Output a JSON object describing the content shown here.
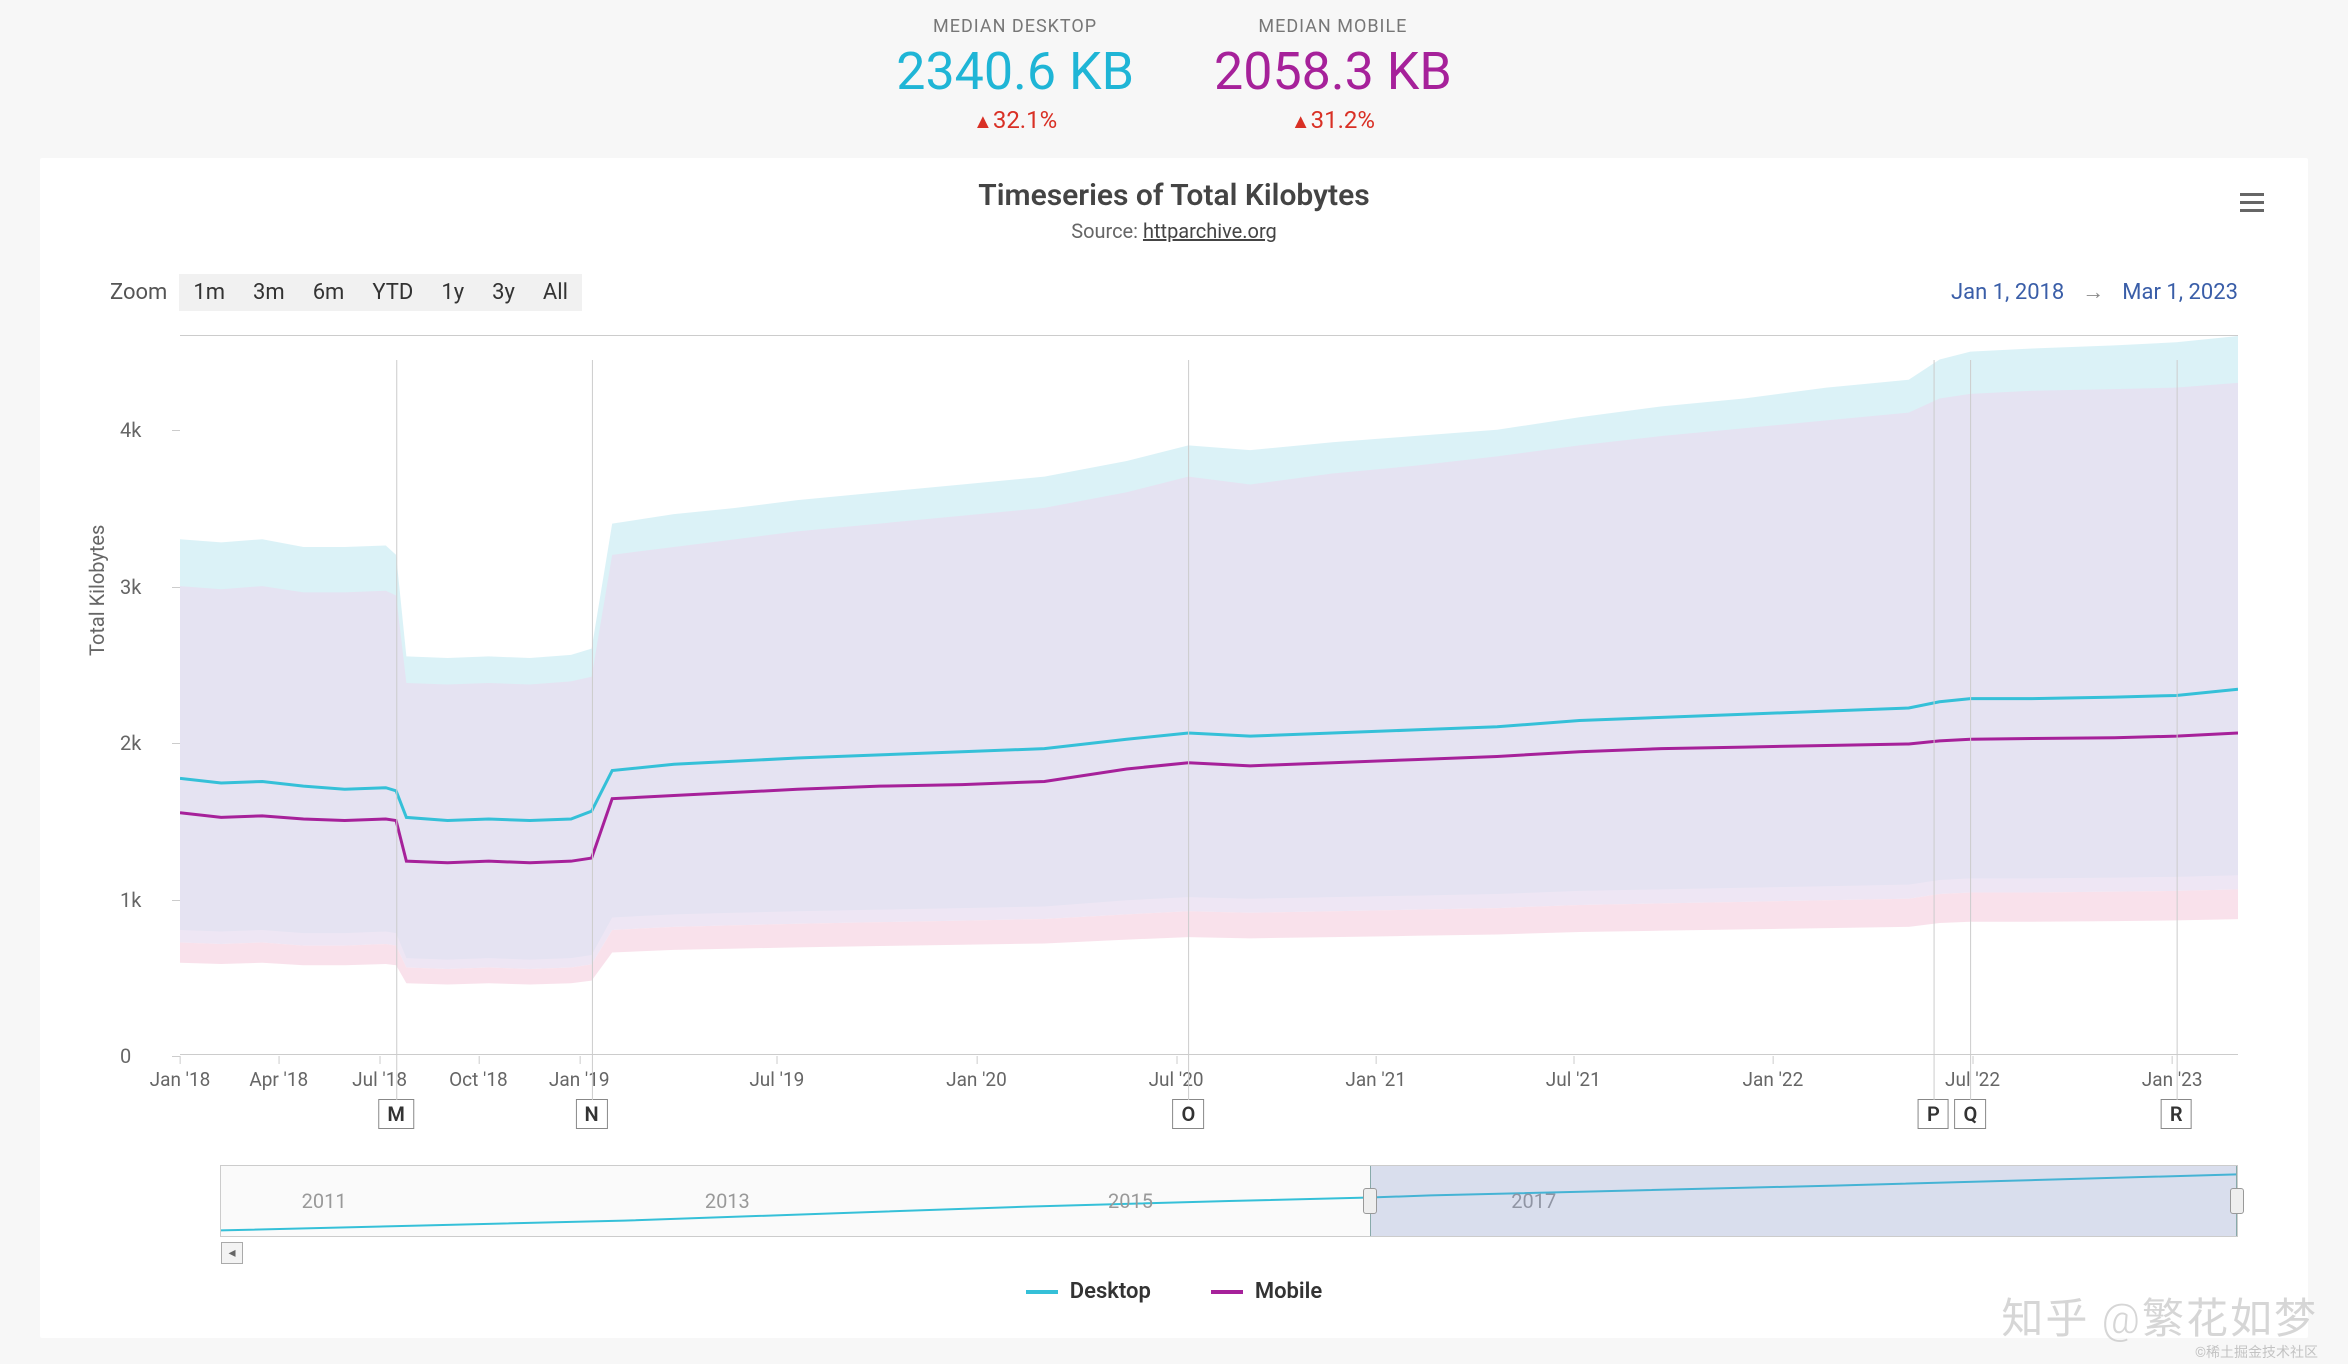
{
  "header": {
    "desktop": {
      "label": "MEDIAN DESKTOP",
      "value": "2340.6 KB",
      "delta": "32.1%",
      "delta_up": true,
      "value_color": "#1fb5d6",
      "delta_color": "#d93025"
    },
    "mobile": {
      "label": "MEDIAN MOBILE",
      "value": "2058.3 KB",
      "delta": "31.2%",
      "delta_up": true,
      "value_color": "#a6219a",
      "delta_color": "#d93025"
    }
  },
  "chart": {
    "title": "Timeseries of Total Kilobytes",
    "subtitle_prefix": "Source: ",
    "subtitle_link": "httparchive.org",
    "y_axis_title": "Total Kilobytes",
    "zoom_label": "Zoom",
    "zoom_buttons": [
      "1m",
      "3m",
      "6m",
      "YTD",
      "1y",
      "3y",
      "All"
    ],
    "date_from": "Jan 1, 2018",
    "date_to": "Mar 1, 2023",
    "y_ticks": [
      {
        "label": "0",
        "v": 0
      },
      {
        "label": "1k",
        "v": 1000
      },
      {
        "label": "2k",
        "v": 2000
      },
      {
        "label": "3k",
        "v": 3000
      },
      {
        "label": "4k",
        "v": 4000
      }
    ],
    "y_max": 4600,
    "x_ticks": [
      "Jan '18",
      "Apr '18",
      "Jul '18",
      "Oct '18",
      "Jan '19",
      "Jul '19",
      "Jan '20",
      "Jul '20",
      "Jan '21",
      "Jul '21",
      "Jan '22",
      "Jul '22",
      "Jan '23"
    ],
    "x_tick_positions": [
      0.0,
      0.048,
      0.097,
      0.145,
      0.194,
      0.29,
      0.387,
      0.484,
      0.581,
      0.677,
      0.774,
      0.871,
      0.968
    ],
    "flags": [
      {
        "label": "M",
        "x": 0.105
      },
      {
        "label": "N",
        "x": 0.2
      },
      {
        "label": "O",
        "x": 0.49
      },
      {
        "label": "P",
        "x": 0.852
      },
      {
        "label": "Q",
        "x": 0.87
      },
      {
        "label": "R",
        "x": 0.97
      }
    ],
    "colors": {
      "desktop_line": "#35c0d8",
      "desktop_band": "#d7f1f6",
      "mobile_line": "#a6219a",
      "mobile_band": "#e8def0",
      "mobile_lower_band": "#f7d9e6",
      "grid": "#cccccc",
      "background": "#ffffff",
      "page_bg": "#f7f7f7"
    },
    "line_width": 3,
    "series": {
      "x": [
        0.0,
        0.02,
        0.04,
        0.06,
        0.08,
        0.1,
        0.105,
        0.11,
        0.13,
        0.15,
        0.17,
        0.19,
        0.2,
        0.21,
        0.24,
        0.27,
        0.3,
        0.34,
        0.38,
        0.42,
        0.46,
        0.49,
        0.52,
        0.56,
        0.6,
        0.64,
        0.68,
        0.72,
        0.76,
        0.8,
        0.84,
        0.855,
        0.87,
        0.9,
        0.94,
        0.97,
        1.0
      ],
      "desktop_median": [
        1770,
        1740,
        1750,
        1720,
        1700,
        1710,
        1690,
        1520,
        1500,
        1510,
        1500,
        1510,
        1560,
        1820,
        1860,
        1880,
        1900,
        1920,
        1940,
        1960,
        2020,
        2060,
        2040,
        2060,
        2080,
        2100,
        2140,
        2160,
        2180,
        2200,
        2220,
        2260,
        2280,
        2280,
        2290,
        2300,
        2340
      ],
      "desktop_upper": [
        3300,
        3280,
        3300,
        3250,
        3250,
        3260,
        3200,
        2550,
        2540,
        2550,
        2540,
        2560,
        2600,
        3400,
        3460,
        3500,
        3550,
        3600,
        3650,
        3700,
        3800,
        3900,
        3870,
        3920,
        3960,
        4000,
        4080,
        4150,
        4200,
        4270,
        4320,
        4450,
        4500,
        4520,
        4540,
        4560,
        4600
      ],
      "desktop_lower": [
        800,
        790,
        800,
        780,
        780,
        790,
        780,
        620,
        610,
        620,
        610,
        620,
        640,
        880,
        900,
        910,
        920,
        930,
        940,
        950,
        990,
        1010,
        1000,
        1010,
        1020,
        1030,
        1050,
        1060,
        1070,
        1080,
        1090,
        1120,
        1130,
        1130,
        1135,
        1140,
        1150
      ],
      "mobile_median": [
        1550,
        1520,
        1530,
        1510,
        1500,
        1510,
        1500,
        1240,
        1230,
        1240,
        1230,
        1240,
        1260,
        1640,
        1660,
        1680,
        1700,
        1720,
        1730,
        1750,
        1830,
        1870,
        1850,
        1870,
        1890,
        1910,
        1940,
        1960,
        1970,
        1980,
        1990,
        2010,
        2020,
        2025,
        2030,
        2040,
        2060
      ],
      "mobile_upper": [
        3000,
        2980,
        3000,
        2960,
        2960,
        2970,
        2940,
        2380,
        2370,
        2380,
        2370,
        2390,
        2420,
        3200,
        3250,
        3300,
        3350,
        3400,
        3450,
        3500,
        3600,
        3700,
        3650,
        3720,
        3770,
        3830,
        3900,
        3960,
        4010,
        4060,
        4110,
        4200,
        4230,
        4250,
        4260,
        4270,
        4300
      ],
      "mobile_lower": [
        720,
        710,
        720,
        700,
        700,
        710,
        700,
        560,
        550,
        560,
        550,
        560,
        580,
        800,
        820,
        830,
        840,
        850,
        860,
        870,
        900,
        920,
        910,
        920,
        930,
        940,
        960,
        970,
        980,
        990,
        1000,
        1030,
        1040,
        1040,
        1045,
        1050,
        1060
      ]
    },
    "navigator": {
      "years": [
        "2011",
        "2013",
        "2015",
        "2017"
      ],
      "year_positions": [
        0.04,
        0.24,
        0.44,
        0.64
      ],
      "selection_start": 0.57,
      "selection_end": 1.0,
      "mini_series_x": [
        0.0,
        0.1,
        0.2,
        0.3,
        0.4,
        0.5,
        0.57,
        0.6,
        0.7,
        0.8,
        0.9,
        1.0
      ],
      "mini_series_y": [
        0.92,
        0.85,
        0.78,
        0.68,
        0.58,
        0.5,
        0.45,
        0.42,
        0.35,
        0.28,
        0.2,
        0.12
      ]
    },
    "legend": [
      {
        "label": "Desktop",
        "color": "#35c0d8"
      },
      {
        "label": "Mobile",
        "color": "#a6219a"
      }
    ]
  },
  "watermark": {
    "main": "知乎 @繁花如梦",
    "sub": "©稀土掘金技术社区"
  }
}
